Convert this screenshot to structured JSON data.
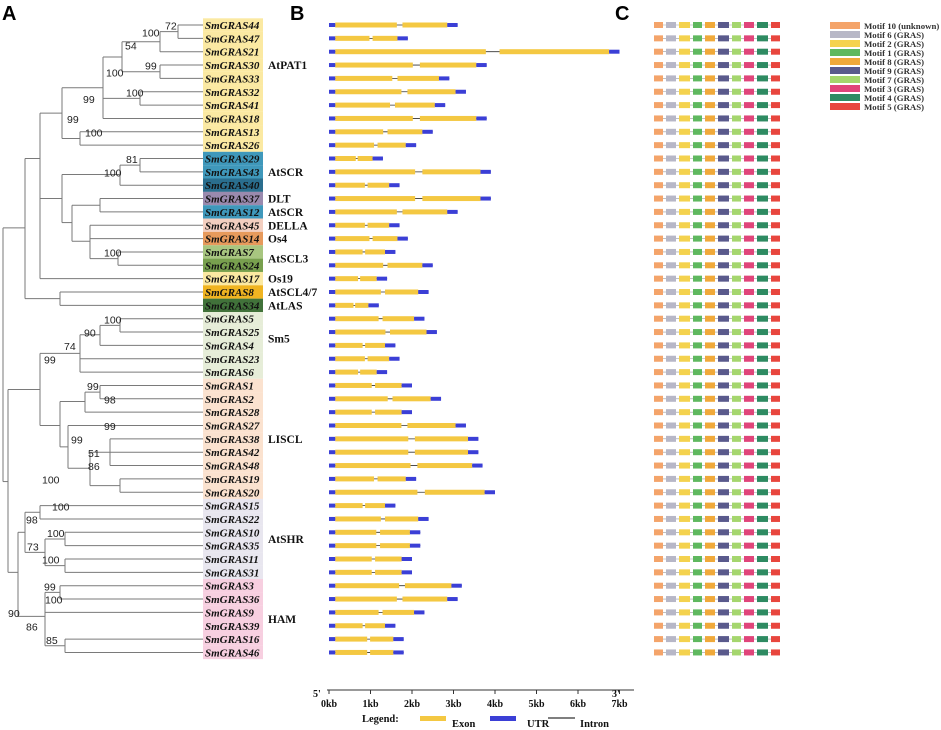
{
  "panels": {
    "a": "A",
    "b": "B",
    "c": "C"
  },
  "genes": [
    {
      "name": "SmGRAS44",
      "hl": "#fbe9a2"
    },
    {
      "name": "SmGRAS47",
      "hl": "#fbe9a2"
    },
    {
      "name": "SmGRAS21",
      "hl": "#fbe9a2"
    },
    {
      "name": "SmGRAS30",
      "hl": "#fbe9a2"
    },
    {
      "name": "SmGRAS33",
      "hl": "#fbe9a2"
    },
    {
      "name": "SmGRAS32",
      "hl": "#fbe9a2"
    },
    {
      "name": "SmGRAS41",
      "hl": "#fbe9a2"
    },
    {
      "name": "SmGRAS18",
      "hl": "#fbe9a2"
    },
    {
      "name": "SmGRAS13",
      "hl": "#fbe9a2"
    },
    {
      "name": "SmGRAS26",
      "hl": "#fbe9a2"
    },
    {
      "name": "SmGRAS29",
      "hl": "#3f98bb"
    },
    {
      "name": "SmGRAS43",
      "hl": "#3f98bb"
    },
    {
      "name": "SmGRAS40",
      "hl": "#2a6e8e"
    },
    {
      "name": "SmGRAS37",
      "hl": "#9a8aae"
    },
    {
      "name": "SmGRAS12",
      "hl": "#3f98bb"
    },
    {
      "name": "SmGRAS45",
      "hl": "#f3cfc0"
    },
    {
      "name": "SmGRAS14",
      "hl": "#e79a5c"
    },
    {
      "name": "SmGRAS7",
      "hl": "#a8c680"
    },
    {
      "name": "SmGRAS24",
      "hl": "#78a04e"
    },
    {
      "name": "SmGRAS17",
      "hl": "#fbe9a2"
    },
    {
      "name": "SmGRAS8",
      "hl": "#f0b421"
    },
    {
      "name": "SmGRAS34",
      "hl": "#41723a"
    },
    {
      "name": "SmGRAS5",
      "hl": "#e6edd8"
    },
    {
      "name": "SmGRAS25",
      "hl": "#e6edd8"
    },
    {
      "name": "SmGRAS4",
      "hl": "#e6edd8"
    },
    {
      "name": "SmGRAS23",
      "hl": "#e6edd8"
    },
    {
      "name": "SmGRAS6",
      "hl": "#e6edd8"
    },
    {
      "name": "SmGRAS1",
      "hl": "#fbe2cf"
    },
    {
      "name": "SmGRAS2",
      "hl": "#fbe2cf"
    },
    {
      "name": "SmGRAS28",
      "hl": "#fbe2cf"
    },
    {
      "name": "SmGRAS27",
      "hl": "#fbe2cf"
    },
    {
      "name": "SmGRAS38",
      "hl": "#fbe2cf"
    },
    {
      "name": "SmGRAS42",
      "hl": "#fbe2cf"
    },
    {
      "name": "SmGRAS48",
      "hl": "#fbe2cf"
    },
    {
      "name": "SmGRAS19",
      "hl": "#fbe2cf"
    },
    {
      "name": "SmGRAS20",
      "hl": "#fbe2cf"
    },
    {
      "name": "SmGRAS15",
      "hl": "#e8e6ef"
    },
    {
      "name": "SmGRAS22",
      "hl": "#e8e6ef"
    },
    {
      "name": "SmGRAS10",
      "hl": "#e8e6ef"
    },
    {
      "name": "SmGRAS35",
      "hl": "#e8e6ef"
    },
    {
      "name": "SmGRAS11",
      "hl": "#e8e6ef"
    },
    {
      "name": "SmGRAS31",
      "hl": "#e8e6ef"
    },
    {
      "name": "SmGRAS3",
      "hl": "#f7cfe0"
    },
    {
      "name": "SmGRAS36",
      "hl": "#f7cfe0"
    },
    {
      "name": "SmGRAS9",
      "hl": "#f7cfe0"
    },
    {
      "name": "SmGRAS39",
      "hl": "#f7cfe0"
    },
    {
      "name": "SmGRAS16",
      "hl": "#f7cfe0"
    },
    {
      "name": "SmGRAS46",
      "hl": "#f7cfe0"
    }
  ],
  "groups": [
    {
      "label": "AtPAT1",
      "row": 3
    },
    {
      "label": "AtSCR",
      "row": 11
    },
    {
      "label": "DLT",
      "row": 13
    },
    {
      "label": "AtSCR",
      "row": 14
    },
    {
      "label": "DELLA",
      "row": 15
    },
    {
      "label": "Os4",
      "row": 16
    },
    {
      "label": "AtSCL3",
      "row": 17.5
    },
    {
      "label": "Os19",
      "row": 19
    },
    {
      "label": "AtSCL4/7",
      "row": 20
    },
    {
      "label": "AtLAS",
      "row": 21
    },
    {
      "label": "Sm5",
      "row": 23.5
    },
    {
      "label": "LISCL",
      "row": 31
    },
    {
      "label": "AtSHR",
      "row": 38.5
    },
    {
      "label": "HAM",
      "row": 44.5
    }
  ],
  "bootstrap": [
    {
      "v": "72",
      "row": 0.5
    },
    {
      "v": "100",
      "row": 1
    },
    {
      "v": "54",
      "row": 2
    },
    {
      "v": "99",
      "row": 3.5
    },
    {
      "v": "100",
      "row": 4
    },
    {
      "v": "100",
      "row": 5.5
    },
    {
      "v": "99",
      "row": 6
    },
    {
      "v": "99",
      "row": 7.5
    },
    {
      "v": "100",
      "row": 8.5
    },
    {
      "v": "81",
      "row": 10.5
    },
    {
      "v": "100",
      "row": 11.5
    },
    {
      "v": "100",
      "row": 17.5
    },
    {
      "v": "100",
      "row": 22.5
    },
    {
      "v": "90",
      "row": 23.5
    },
    {
      "v": "74",
      "row": 24.5
    },
    {
      "v": "99",
      "row": 25.5
    },
    {
      "v": "99",
      "row": 27.5
    },
    {
      "v": "98",
      "row": 28.5
    },
    {
      "v": "99",
      "row": 30.5
    },
    {
      "v": "99",
      "row": 31.5
    },
    {
      "v": "51",
      "row": 32.5
    },
    {
      "v": "86",
      "row": 33.5
    },
    {
      "v": "100",
      "row": 34.5
    },
    {
      "v": "100",
      "row": 36.5
    },
    {
      "v": "98",
      "row": 37.5
    },
    {
      "v": "100",
      "row": 38.5
    },
    {
      "v": "73",
      "row": 39.5
    },
    {
      "v": "100",
      "row": 40.5
    },
    {
      "v": "99",
      "row": 42.5
    },
    {
      "v": "100",
      "row": 43.5
    },
    {
      "v": "90",
      "row": 44.5
    },
    {
      "v": "86",
      "row": 45.5
    },
    {
      "v": "85",
      "row": 46.5
    }
  ],
  "structure": {
    "axis_ticks": [
      "0kb",
      "1kb",
      "2kb",
      "3kb",
      "4kb",
      "5kb",
      "6kb",
      "7kb"
    ],
    "five_prime": "5'",
    "three_prime": "3'",
    "legend_title": "Legend:",
    "legend_items": [
      {
        "label": "Exon",
        "color": "#f4c842"
      },
      {
        "label": "UTR",
        "color": "#3b3fd6"
      },
      {
        "label": "Intron",
        "color": "#333333"
      }
    ]
  },
  "motif_legend": [
    {
      "label": "Motif 10 (unknown)",
      "color": "#f4a46a"
    },
    {
      "label": "Motif 6 (GRAS)",
      "color": "#b7b7c7"
    },
    {
      "label": "Motif 2 (GRAS)",
      "color": "#f4d24e"
    },
    {
      "label": "Motif 1 (GRAS)",
      "color": "#5fb85f"
    },
    {
      "label": "Motif 8 (GRAS)",
      "color": "#f0a93a"
    },
    {
      "label": "Motif 9 (GRAS)",
      "color": "#5a5a8c"
    },
    {
      "label": "Motif 7 (GRAS)",
      "color": "#a5d66e"
    },
    {
      "label": "Motif 3 (GRAS)",
      "color": "#e0457a"
    },
    {
      "label": "Motif 4 (GRAS)",
      "color": "#2e8b62"
    },
    {
      "label": "Motif 5 (GRAS)",
      "color": "#e8463e"
    }
  ]
}
